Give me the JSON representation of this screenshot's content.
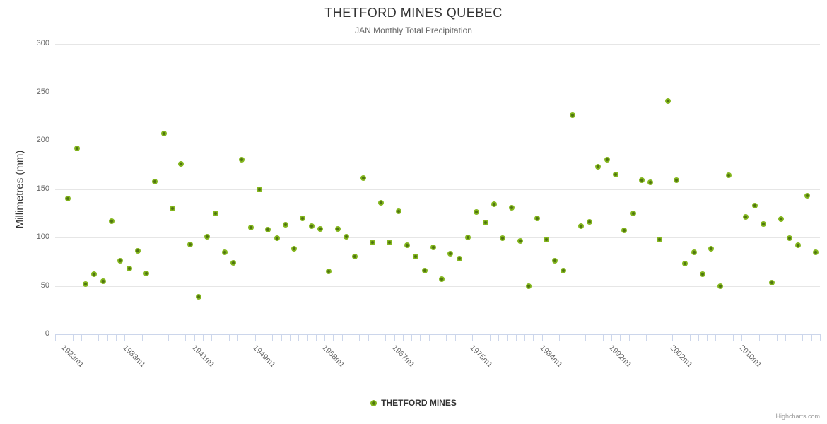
{
  "chart_data": {
    "type": "scatter",
    "title": "THETFORD MINES QUEBEC",
    "subtitle": "JAN Monthly Total Precipitation",
    "ylabel": "Millimetres (mm)",
    "ylim": [
      0,
      300
    ],
    "yticks": [
      0,
      50,
      100,
      150,
      200,
      250,
      300
    ],
    "grid": true,
    "legend_position": "bottom-center",
    "n_categories": 88,
    "x_tick_labels": [
      {
        "label": "1923m1",
        "index": 1
      },
      {
        "label": "1933m1",
        "index": 8
      },
      {
        "label": "1941m1",
        "index": 16
      },
      {
        "label": "1949m1",
        "index": 23
      },
      {
        "label": "1958m1",
        "index": 31
      },
      {
        "label": "1967m1",
        "index": 39
      },
      {
        "label": "1975m1",
        "index": 48
      },
      {
        "label": "1984m1",
        "index": 56
      },
      {
        "label": "1992m1",
        "index": 64
      },
      {
        "label": "2002m1",
        "index": 71
      },
      {
        "label": "2010m1",
        "index": 79
      }
    ],
    "series": [
      {
        "name": "THETFORD MINES",
        "marker_color": "#84b71e",
        "marker_center_color": "#4f7410",
        "values": [
          null,
          140,
          192,
          52,
          62,
          55,
          117,
          76,
          68,
          86,
          63,
          158,
          207,
          130,
          176,
          93,
          39,
          101,
          125,
          85,
          74,
          180,
          110,
          150,
          108,
          99,
          113,
          88,
          120,
          112,
          109,
          65,
          109,
          101,
          80,
          161,
          95,
          136,
          95,
          127,
          92,
          80,
          66,
          90,
          57,
          83,
          78,
          100,
          126,
          115,
          134,
          99,
          131,
          96,
          50,
          120,
          98,
          76,
          66,
          226,
          112,
          116,
          173,
          180,
          165,
          107,
          125,
          159,
          157,
          98,
          241,
          159,
          73,
          85,
          62,
          88,
          50,
          164,
          null,
          121,
          133,
          114,
          53,
          119,
          99,
          92,
          143,
          85
        ]
      }
    ],
    "credits": "Highcharts.com"
  },
  "colors": {
    "background": "#ffffff",
    "title_text": "#333333",
    "subtitle_text": "#666666",
    "axis_label_text": "#666666",
    "grid_line": "#e6e6e6",
    "axis_line": "#ccd6eb",
    "marker_outer": "#84b71e",
    "marker_inner": "#4f7410",
    "legend_text": "#333333",
    "credits_text": "#999999"
  }
}
